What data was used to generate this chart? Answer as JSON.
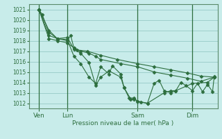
{
  "bg_color": "#c8ecea",
  "grid_color": "#9dcfcc",
  "line_color": "#2d6e3e",
  "ylabel_text": "Pression niveau de la mer( hPa )",
  "yticks": [
    1012,
    1013,
    1014,
    1015,
    1016,
    1017,
    1018,
    1019,
    1020,
    1021
  ],
  "ylim": [
    1011.5,
    1021.5
  ],
  "xlim": [
    -3,
    110
  ],
  "xtick_positions": [
    3,
    20,
    62,
    95
  ],
  "xtick_labels": [
    "Ven",
    "Lun",
    "Sam",
    "Dim"
  ],
  "vline_positions": [
    3,
    20,
    62,
    95
  ],
  "series": [
    [
      3,
      1021,
      5,
      1020.5,
      9,
      1018.8,
      14,
      1018.2,
      20,
      1018.0,
      22,
      1018.5,
      24,
      1017.3,
      26,
      1017.1,
      32,
      1017.0,
      40,
      1016.6,
      50,
      1016.2,
      62,
      1015.8,
      72,
      1015.5,
      82,
      1015.2,
      92,
      1014.9,
      100,
      1014.6,
      108,
      1014.5
    ],
    [
      3,
      1021,
      9,
      1018.5,
      14,
      1018.2,
      20,
      1018.1,
      24,
      1016.5,
      28,
      1015.8,
      33,
      1014.5,
      37,
      1013.9,
      40,
      1015.5,
      45,
      1014.8,
      47,
      1015.6,
      52,
      1014.8,
      54,
      1013.5,
      57,
      1012.5,
      60,
      1012.5,
      62,
      1012.2,
      64,
      1012.1,
      68,
      1012.0,
      72,
      1013.9,
      75,
      1014.2,
      78,
      1013.2,
      82,
      1013.0,
      85,
      1013.2,
      88,
      1014.0,
      91,
      1013.7,
      95,
      1013.2,
      98,
      1013.9,
      101,
      1013.1,
      104,
      1013.8,
      107,
      1013.1,
      108,
      1014.6
    ],
    [
      3,
      1021,
      9,
      1019.0,
      14,
      1018.2,
      20,
      1018.3,
      24,
      1017.2,
      28,
      1016.8,
      33,
      1015.9,
      37,
      1013.7,
      40,
      1014.5,
      45,
      1015.1,
      52,
      1014.5,
      54,
      1013.5,
      58,
      1012.4,
      60,
      1012.4,
      62,
      1012.2,
      68,
      1012.0,
      78,
      1013.0,
      82,
      1013.2,
      85,
      1013.2,
      95,
      1013.9,
      104,
      1014.0,
      108,
      1014.5
    ],
    [
      3,
      1021,
      9,
      1018.2,
      14,
      1018.0,
      20,
      1017.8,
      24,
      1017.3,
      28,
      1017.0,
      33,
      1016.8,
      37,
      1016.5,
      40,
      1016.2,
      52,
      1015.8,
      62,
      1015.5,
      72,
      1015.0,
      82,
      1014.7,
      92,
      1014.4,
      100,
      1014.1,
      108,
      1014.5
    ]
  ]
}
